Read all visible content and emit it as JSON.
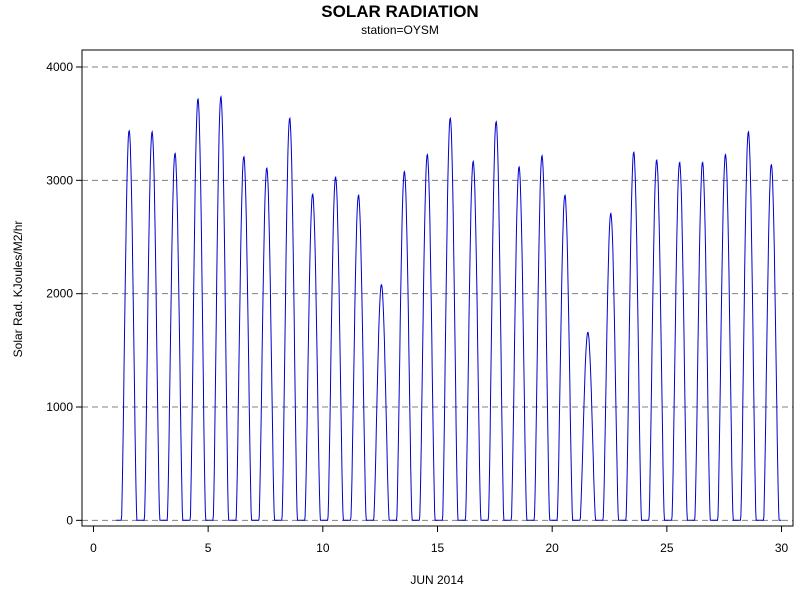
{
  "chart_data": {
    "type": "line",
    "title": "SOLAR RADIATION",
    "subtitle": "station=OYSM",
    "xlabel": "JUN 2014",
    "ylabel": "Solar Rad. KJoules/M2/hr",
    "xlim": [
      -0.5,
      30.5
    ],
    "ylim": [
      -50,
      4150
    ],
    "x_ticks": [
      0,
      5,
      10,
      15,
      20,
      25,
      30
    ],
    "y_ticks": [
      0,
      1000,
      2000,
      3000,
      4000
    ],
    "grid": "horizontal dashed at y ticks",
    "series": [
      {
        "color": "#0000cc",
        "daily_peaks": [
          {
            "day": 1,
            "peak": 3440
          },
          {
            "day": 2,
            "peak": 3430
          },
          {
            "day": 3,
            "peak": 3240
          },
          {
            "day": 4,
            "peak": 3720
          },
          {
            "day": 5,
            "peak": 3740
          },
          {
            "day": 6,
            "peak": 3210
          },
          {
            "day": 7,
            "peak": 3110
          },
          {
            "day": 8,
            "peak": 3550
          },
          {
            "day": 9,
            "peak": 2880
          },
          {
            "day": 10,
            "peak": 3030
          },
          {
            "day": 11,
            "peak": 2870
          },
          {
            "day": 12,
            "peak": 2080
          },
          {
            "day": 13,
            "peak": 3080
          },
          {
            "day": 14,
            "peak": 3230
          },
          {
            "day": 15,
            "peak": 3550
          },
          {
            "day": 16,
            "peak": 3170
          },
          {
            "day": 17,
            "peak": 3520
          },
          {
            "day": 18,
            "peak": 3120
          },
          {
            "day": 19,
            "peak": 3220
          },
          {
            "day": 20,
            "peak": 2870
          },
          {
            "day": 21,
            "peak": 1660
          },
          {
            "day": 22,
            "peak": 2710
          },
          {
            "day": 23,
            "peak": 3250
          },
          {
            "day": 24,
            "peak": 3180
          },
          {
            "day": 25,
            "peak": 3160
          },
          {
            "day": 26,
            "peak": 3160
          },
          {
            "day": 27,
            "peak": 3230
          },
          {
            "day": 28,
            "peak": 3430
          },
          {
            "day": 29,
            "peak": 3140
          }
        ]
      }
    ]
  }
}
